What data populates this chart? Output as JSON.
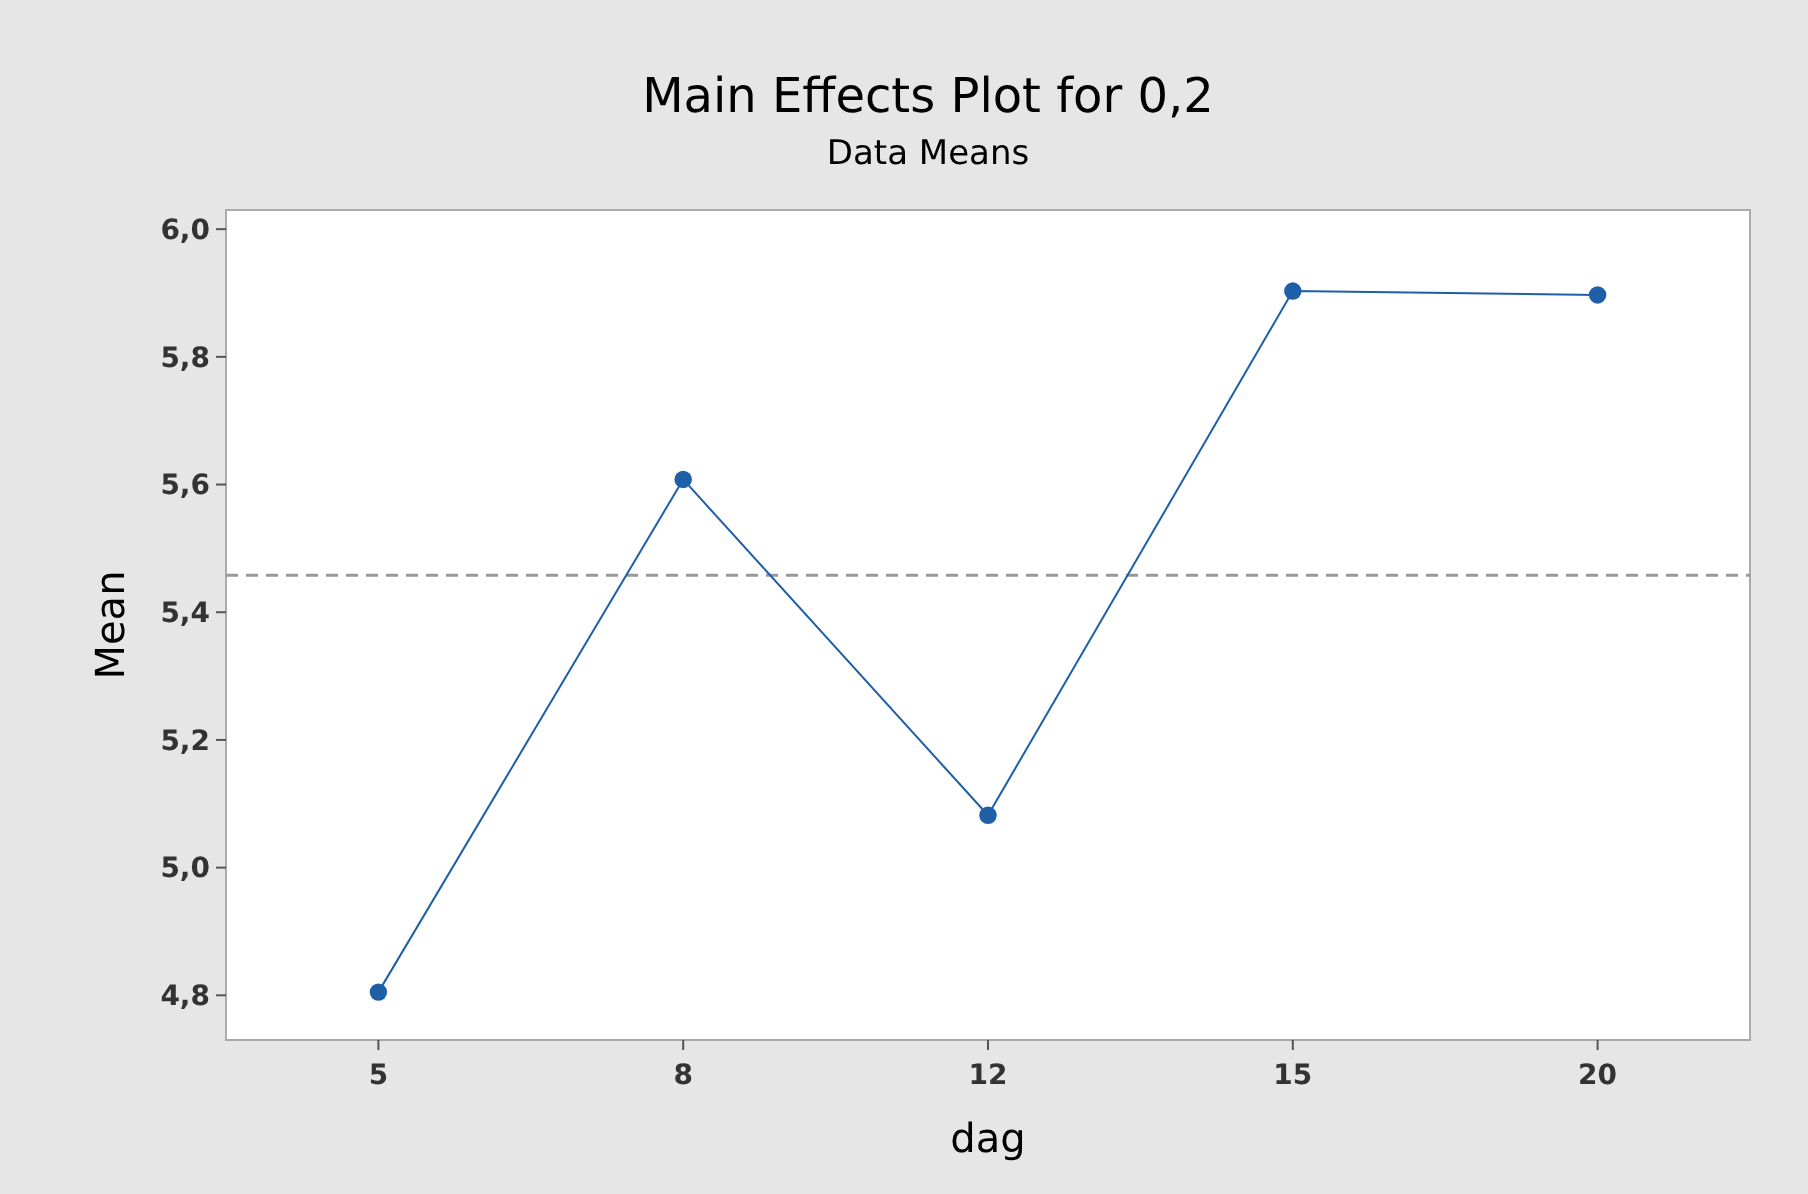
{
  "chart_data": {
    "type": "line",
    "title": "Main Effects Plot for 0,2",
    "subtitle": "Data Means",
    "xlabel": "dag",
    "ylabel": "Mean",
    "categories": [
      "5",
      "8",
      "12",
      "15",
      "20"
    ],
    "series": [
      {
        "color": "#1f5fa8",
        "values": [
          4.805,
          5.608,
          5.082,
          5.903,
          5.897
        ]
      }
    ],
    "marker": "circle",
    "line_style": "solid",
    "grid": false,
    "ylim": [
      4.73,
      6.03
    ],
    "yticks": [
      {
        "value": 4.8,
        "label": "4,8"
      },
      {
        "value": 5.0,
        "label": "5,0"
      },
      {
        "value": 5.2,
        "label": "5,2"
      },
      {
        "value": 5.4,
        "label": "5,4"
      },
      {
        "value": 5.6,
        "label": "5,6"
      },
      {
        "value": 5.8,
        "label": "5,8"
      },
      {
        "value": 6.0,
        "label": "6,0"
      }
    ],
    "ref_lines": [
      {
        "axis": "y",
        "value": 5.458,
        "color": "#999999",
        "line_style": "dashed"
      }
    ]
  }
}
